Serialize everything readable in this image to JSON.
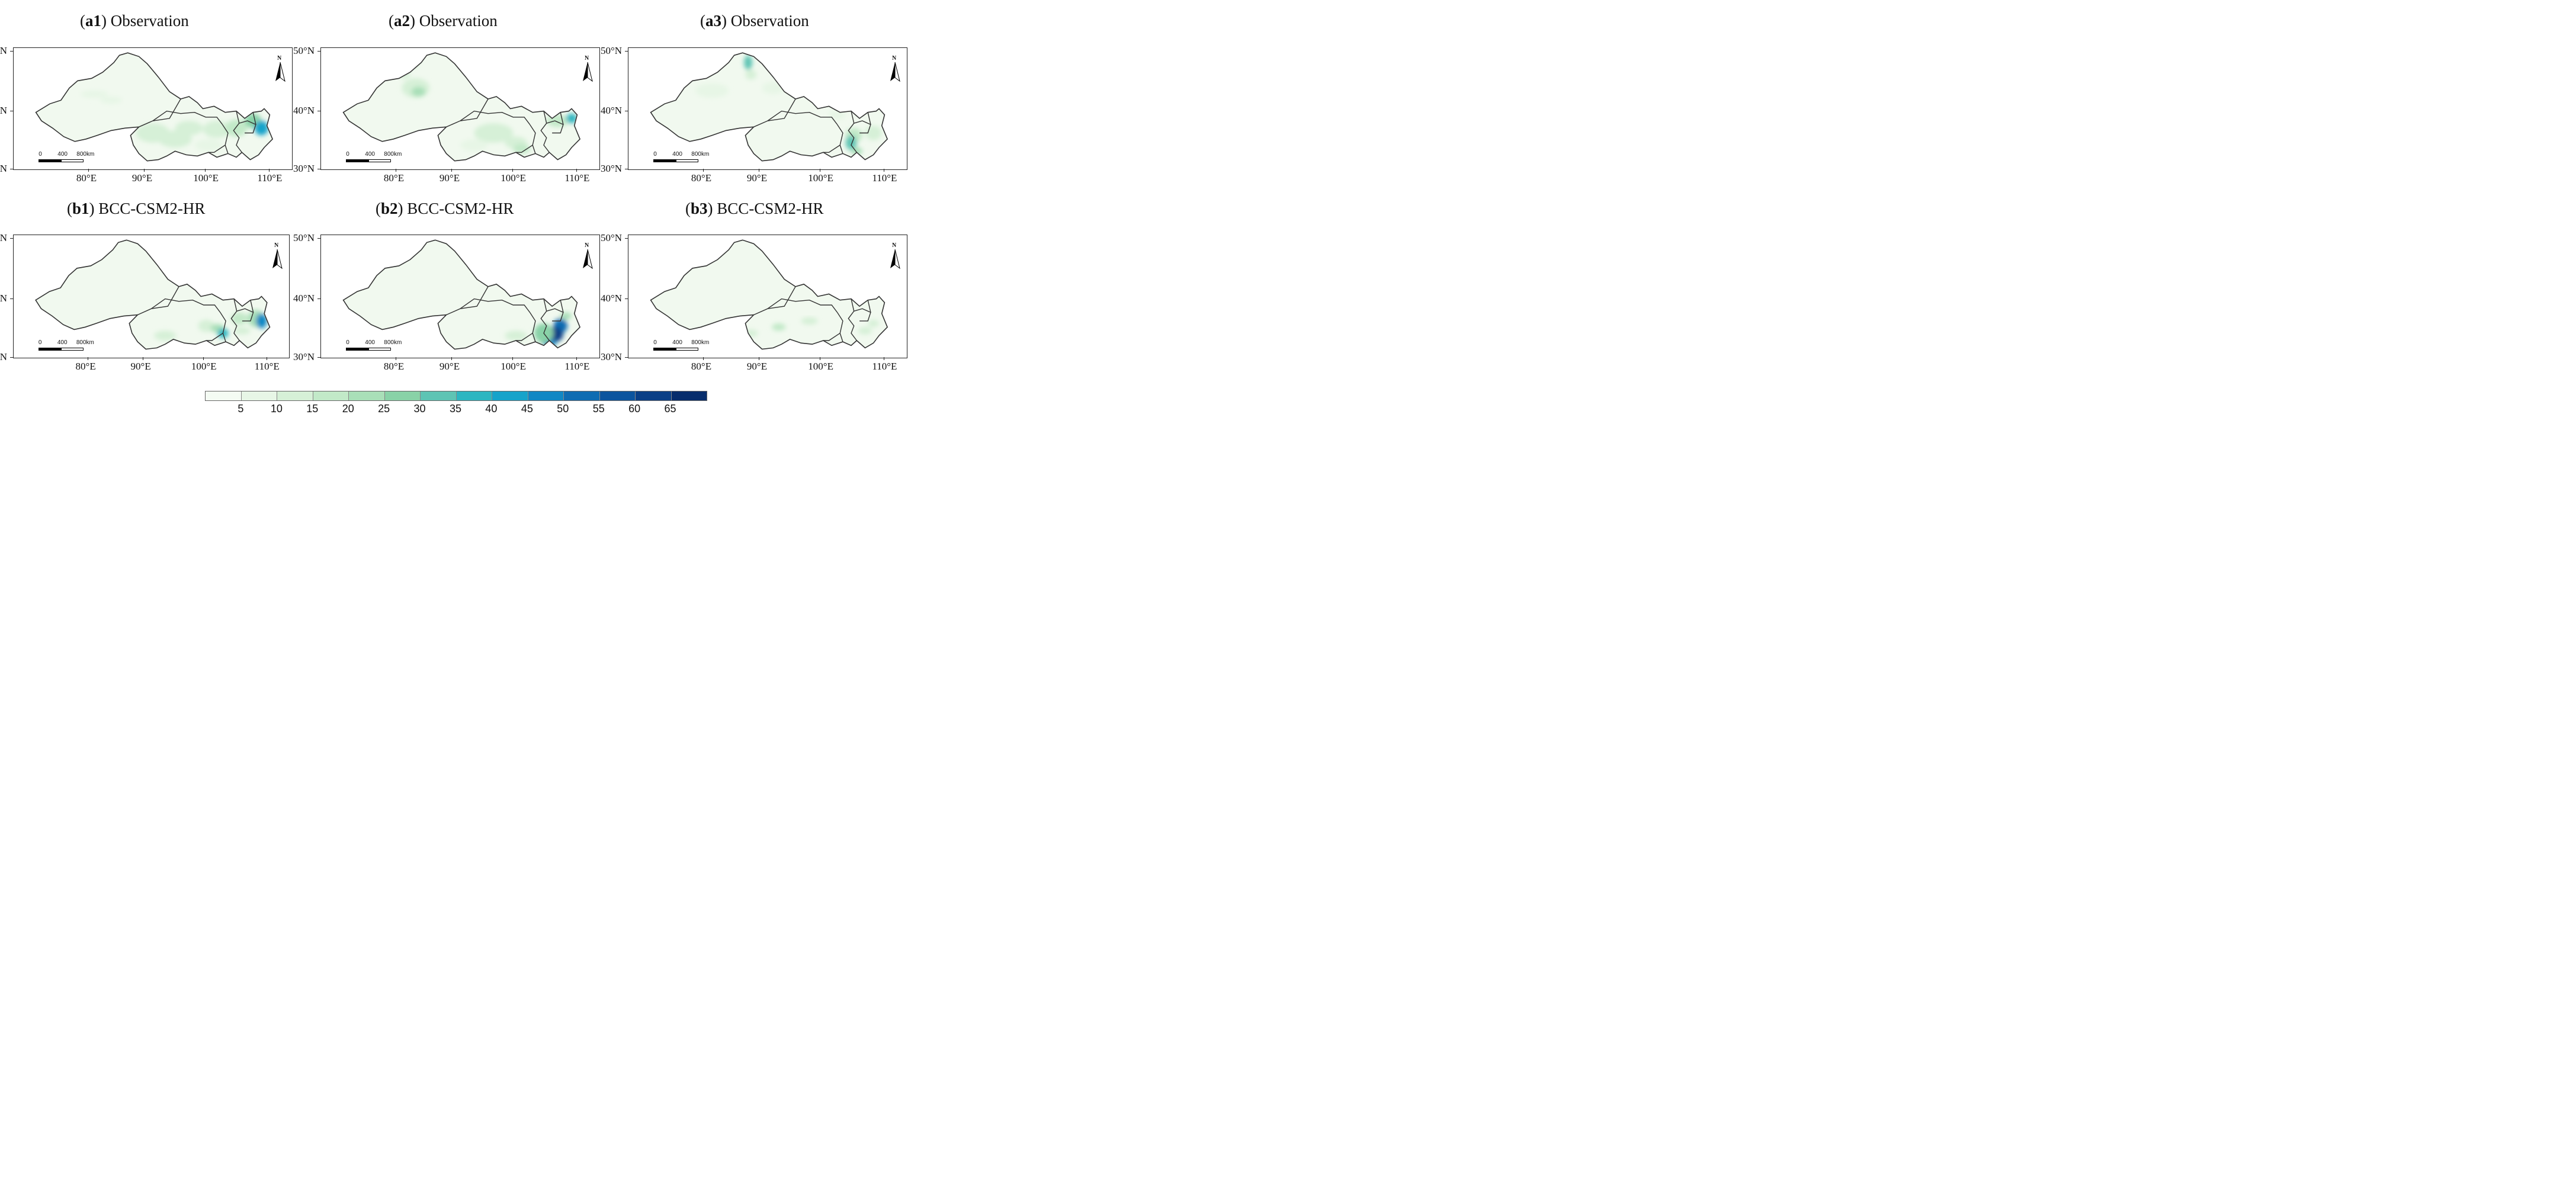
{
  "panels": [
    {
      "id": "a1",
      "label": "a1",
      "model": "Observation"
    },
    {
      "id": "a2",
      "label": "a2",
      "model": "Observation"
    },
    {
      "id": "a3",
      "label": "a3",
      "model": "Observation"
    },
    {
      "id": "b1",
      "label": "b1",
      "model": "BCC-CSM2-HR"
    },
    {
      "id": "b2",
      "label": "b2",
      "model": "BCC-CSM2-HR"
    },
    {
      "id": "b3",
      "label": "b3",
      "model": "BCC-CSM2-HR"
    }
  ],
  "axes": {
    "lat_labels": [
      "50°N",
      "40°N",
      "30°N"
    ],
    "lon_labels": [
      "80°E",
      "90°E",
      "100°E",
      "110°E"
    ]
  },
  "scale_bar": {
    "ticks": [
      "0",
      "400",
      "800km"
    ]
  },
  "north_arrow": {
    "letter": "N"
  },
  "colorbar": {
    "labels": [
      "5",
      "10",
      "15",
      "20",
      "25",
      "30",
      "35",
      "40",
      "45",
      "50",
      "55",
      "60",
      "65"
    ],
    "colors": [
      "#f4fbf3",
      "#e7f6e6",
      "#d6f0d7",
      "#c2e9c8",
      "#a9dfb8",
      "#89d2a7",
      "#5ec4b4",
      "#2db6c1",
      "#16a3ca",
      "#1187c4",
      "#0f6cb2",
      "#0c549e",
      "#0a3f86",
      "#072d6c"
    ]
  },
  "colors": {
    "land_base": "#f1f9ef",
    "border": "#333333"
  }
}
